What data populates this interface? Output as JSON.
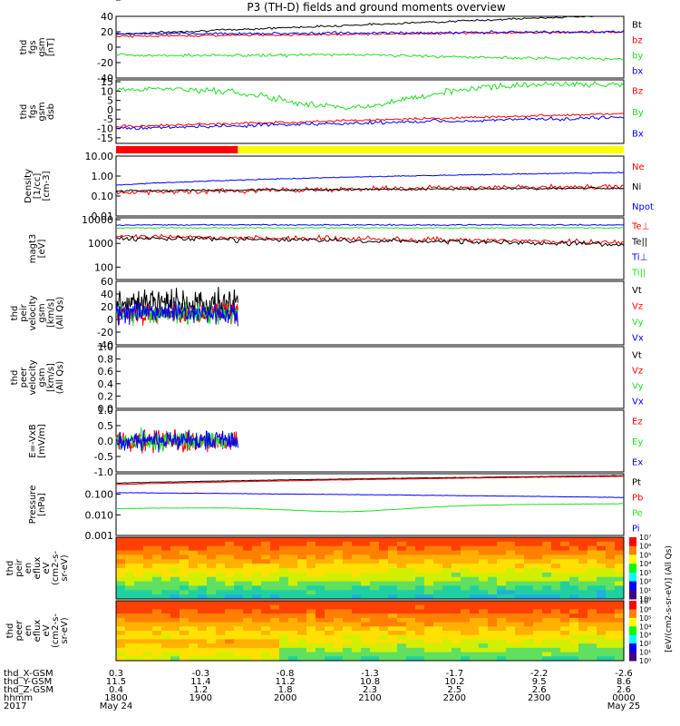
{
  "title": "P3 (TH-D) fields and ground moments overview",
  "colors": {
    "black": "#000000",
    "red": "#ff0000",
    "green": "#22dd22",
    "blue": "#0000ff",
    "yellow": "#ffff00"
  },
  "chart_data": [
    {
      "type": "line",
      "ylabel": [
        "thd",
        "fgs",
        "gsm",
        "[nT]"
      ],
      "yticks": [
        40,
        20,
        0,
        -20,
        -40
      ],
      "ylim": [
        -40,
        40
      ],
      "series": [
        {
          "name": "Bt",
          "color": "black",
          "start": 17,
          "end": 42,
          "noise": 0.4
        },
        {
          "name": "bz",
          "color": "red",
          "start": 14,
          "end": 20,
          "noise": 0.4
        },
        {
          "name": "by",
          "color": "green",
          "start": -10,
          "end": -15,
          "noise": 0.6,
          "dip": -8
        },
        {
          "name": "bx",
          "color": "blue",
          "start": 17,
          "end": 20,
          "noise": 0.5
        }
      ]
    },
    {
      "type": "line",
      "ylabel": [
        "thd",
        "fgs",
        "gsm",
        "dsb"
      ],
      "yticks": [
        15,
        10,
        5,
        0,
        -5,
        -10,
        -15
      ],
      "ylim": [
        -18,
        16
      ],
      "series": [
        {
          "name": "Bz",
          "color": "red",
          "start": -9,
          "end": -2,
          "noise": 0.5
        },
        {
          "name": "By",
          "color": "green",
          "start": 11,
          "end": 14,
          "noise": 1.2,
          "dip": -6
        },
        {
          "name": "Bx",
          "color": "blue",
          "start": -10,
          "end": -4,
          "noise": 0.7
        }
      ]
    },
    {
      "type": "bar",
      "name": "mode",
      "segments": [
        {
          "color": "red",
          "from": 0,
          "to": 0.24
        },
        {
          "color": "yellow",
          "from": 0.24,
          "to": 1
        }
      ]
    },
    {
      "type": "line",
      "log": true,
      "ylabel": [
        "Density",
        "[1/cc]",
        "[cm-3]"
      ],
      "yticks": [
        "10.00",
        "1.00",
        "0.10",
        "0.01"
      ],
      "ylim": [
        0.01,
        10
      ],
      "series": [
        {
          "name": "Ne",
          "color": "red",
          "start": 0.15,
          "end": 0.3,
          "noise": 0.25
        },
        {
          "name": "Ni",
          "color": "black",
          "start": 0.18,
          "end": 0.25,
          "noise": 0.1
        },
        {
          "name": "Npot",
          "color": "blue",
          "start": 0.35,
          "end": 1.5,
          "noise": 0.05
        }
      ]
    },
    {
      "type": "line",
      "log": true,
      "ylabel": [
        "magt3",
        "[eV]"
      ],
      "yticks": [
        "10000",
        "1000",
        "100"
      ],
      "ylim": [
        30,
        12000
      ],
      "series": [
        {
          "name": "Te⊥",
          "color": "red",
          "start": 2000,
          "end": 1100,
          "noise": 0.2
        },
        {
          "name": "Te||",
          "color": "black",
          "start": 1700,
          "end": 900,
          "noise": 0.2
        },
        {
          "name": "Ti⊥",
          "color": "blue",
          "start": 6000,
          "end": 6000,
          "noise": 0.05
        },
        {
          "name": "Ti||",
          "color": "green",
          "start": 4500,
          "end": 4500,
          "noise": 0.05
        }
      ]
    },
    {
      "type": "line",
      "ylabel": [
        "thd",
        "peir",
        "velocity",
        "gsm",
        "[km/s]",
        "(All Qs)"
      ],
      "yticks": [
        60,
        40,
        20,
        0,
        -20,
        -40
      ],
      "ylim": [
        -40,
        60
      ],
      "series": [
        {
          "name": "Vt",
          "color": "black"
        },
        {
          "name": "Vz",
          "color": "red"
        },
        {
          "name": "Vy",
          "color": "green"
        },
        {
          "name": "Vx",
          "color": "blue"
        }
      ],
      "active_until": 0.24
    },
    {
      "type": "line",
      "ylabel": [
        "thd",
        "peer",
        "velocity",
        "gsm",
        "[km/s]",
        "(All Qs)"
      ],
      "yticks": [
        "1.0",
        "0.8",
        "0.6",
        "0.4",
        "0.2",
        "0.0"
      ],
      "ylim": [
        0,
        1
      ],
      "series": [
        {
          "name": "Vt",
          "color": "black"
        },
        {
          "name": "Vz",
          "color": "red"
        },
        {
          "name": "Vy",
          "color": "green"
        },
        {
          "name": "Vx",
          "color": "blue"
        }
      ]
    },
    {
      "type": "line",
      "ylabel": [
        "E=-VxB",
        "[mV/m]"
      ],
      "yticks": [
        "1.0",
        "0.5",
        "0.0",
        "-0.5",
        "-1.0"
      ],
      "ylim": [
        -1,
        1
      ],
      "series": [
        {
          "name": "Ez",
          "color": "red"
        },
        {
          "name": "Ey",
          "color": "green"
        },
        {
          "name": "Ex",
          "color": "blue"
        }
      ],
      "active_until": 0.24
    },
    {
      "type": "line",
      "log": true,
      "ylabel": [
        "Pressure",
        "[nPa]"
      ],
      "yticks": [
        "0.100",
        "0.010",
        "0.001"
      ],
      "ylim": [
        0.001,
        1
      ],
      "series": [
        {
          "name": "Pt",
          "color": "black",
          "start": 0.35,
          "end": 0.8,
          "noise": 0.02
        },
        {
          "name": "Pb",
          "color": "red",
          "start": 0.3,
          "end": 0.75,
          "noise": 0.02
        },
        {
          "name": "Pe",
          "color": "green",
          "start": 0.02,
          "end": 0.035,
          "noise": 0.02,
          "dip": 0.006
        },
        {
          "name": "Pi",
          "color": "blue",
          "start": 0.12,
          "end": 0.07,
          "noise": 0.02
        }
      ]
    },
    {
      "type": "heatmap",
      "ylabel": [
        "thd",
        "peir",
        "en",
        "eflux",
        "eV",
        "(cm2-s-",
        "sr-eV)"
      ],
      "yticks": [
        "10000",
        "1000",
        "100",
        "10"
      ]
    },
    {
      "type": "heatmap",
      "ylabel": [
        "thd",
        "peer",
        "en",
        "eflux",
        "eV",
        "(cm2-s-",
        "sr-eV)"
      ],
      "yticks": [
        "10000",
        "1000",
        "100",
        "10"
      ]
    }
  ],
  "colorbar": {
    "label": "[eV/(cm2-s-sr-eV)] (All Qs)",
    "ticks": [
      "10⁷",
      "10⁶",
      "10⁵",
      "10⁴",
      "10³",
      "10²",
      "10¹",
      "10⁰"
    ]
  },
  "xaxis": {
    "rows": [
      {
        "label": "thd_X-GSM",
        "values": [
          "0.3",
          "-0.3",
          "-0.8",
          "-1.3",
          "-1.7",
          "-2.2",
          "-2.6"
        ]
      },
      {
        "label": "thd_Y-GSM",
        "values": [
          "11.5",
          "11.4",
          "11.2",
          "10.8",
          "10.2",
          "9.5",
          "8.6"
        ]
      },
      {
        "label": "thd_Z-GSM",
        "values": [
          "0.4",
          "1.2",
          "1.8",
          "2.3",
          "2.5",
          "2.6",
          "2.6"
        ]
      },
      {
        "label": "hhmm",
        "values": [
          "1800",
          "1900",
          "2000",
          "2100",
          "2200",
          "2300",
          "0000"
        ]
      },
      {
        "label": "2017",
        "values": [
          "May 24",
          "",
          "",
          "",
          "",
          "",
          "May 25"
        ]
      }
    ]
  }
}
